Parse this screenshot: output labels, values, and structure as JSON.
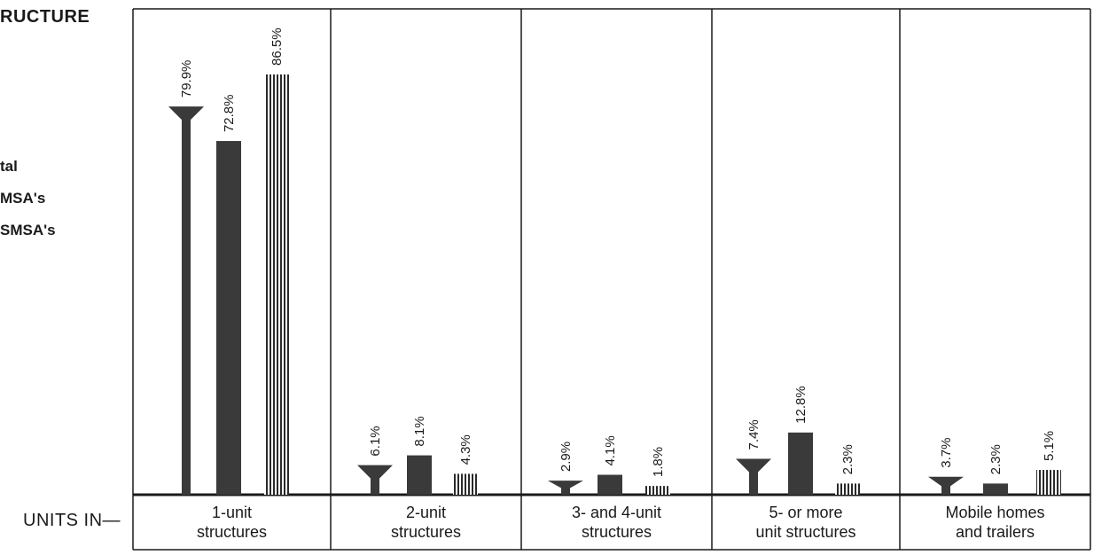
{
  "page": {
    "side_title": "RUCTURE",
    "legend": [
      "tal",
      "MSA's",
      "SMSA's"
    ],
    "units_label": "UNITS IN—"
  },
  "chart_data": {
    "type": "bar",
    "categories": [
      [
        "1-unit",
        "structures"
      ],
      [
        "2-unit",
        "structures"
      ],
      [
        "3- and 4-unit",
        "structures"
      ],
      [
        "5- or more",
        "unit structures"
      ],
      [
        "Mobile homes",
        "and trailers"
      ]
    ],
    "series": [
      {
        "values": [
          79.9,
          6.1,
          2.9,
          7.4,
          3.7
        ],
        "labels": [
          "79.9%",
          "6.1%",
          "2.9%",
          "7.4%",
          "3.7%"
        ]
      },
      {
        "values": [
          72.8,
          8.1,
          4.1,
          12.8,
          2.3
        ],
        "labels": [
          "72.8%",
          "8.1%",
          "4.1%",
          "12.8%",
          "2.3%"
        ]
      },
      {
        "values": [
          86.5,
          4.3,
          1.8,
          2.3,
          5.1
        ],
        "labels": [
          "86.5%",
          "4.3%",
          "1.8%",
          "2.3%",
          "5.1%"
        ]
      }
    ],
    "ylim": [
      0,
      100
    ],
    "grid": false,
    "colors": {
      "bar": "#3a3a3a",
      "frame": "#1a1a1a"
    }
  }
}
